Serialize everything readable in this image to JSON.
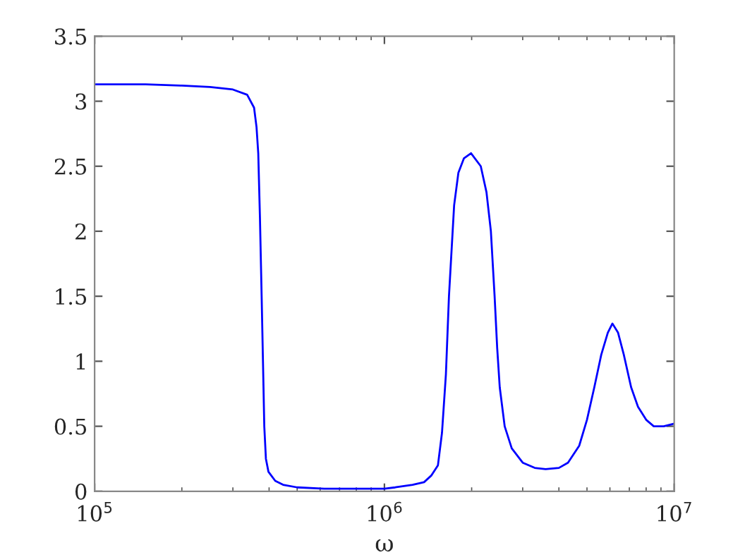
{
  "chart_data": {
    "type": "line",
    "xlabel": "ω",
    "log": "x",
    "xlim": [
      100000,
      10000000
    ],
    "ylim": [
      0,
      3.5
    ],
    "xticks": [
      {
        "value": 100000,
        "label": "10$^{5}$"
      },
      {
        "value": 1000000,
        "label": "10$^{6}$"
      },
      {
        "value": 10000000,
        "label": "10$^{7}$"
      }
    ],
    "yticks": [
      0,
      0.5,
      1,
      1.5,
      2,
      2.5,
      3,
      3.5
    ],
    "grid": false,
    "legend": false,
    "marker": "none",
    "line_style": "solid",
    "series": [
      {
        "color": "#0000ff",
        "x": [
          100000,
          150000,
          200000,
          250000,
          300000,
          336000,
          355000,
          362000,
          367000,
          372000,
          377000,
          381000,
          385000,
          390000,
          398000,
          420000,
          447000,
          500000,
          620000,
          750000,
          870000,
          1000000,
          1090000,
          1250000,
          1370000,
          1450000,
          1530000,
          1580000,
          1630000,
          1670000,
          1740000,
          1800000,
          1880000,
          1990000,
          2150000,
          2250000,
          2330000,
          2400000,
          2450000,
          2500000,
          2600000,
          2750000,
          3000000,
          3300000,
          3600000,
          4000000,
          4300000,
          4700000,
          5000000,
          5300000,
          5600000,
          5900000,
          6120000,
          6400000,
          6700000,
          7100000,
          7500000,
          8000000,
          8500000,
          9200000,
          10000000
        ],
        "values": [
          3.13,
          3.13,
          3.12,
          3.11,
          3.09,
          3.05,
          2.95,
          2.8,
          2.6,
          2.1,
          1.5,
          1.0,
          0.5,
          0.25,
          0.15,
          0.08,
          0.05,
          0.03,
          0.02,
          0.02,
          0.02,
          0.02,
          0.03,
          0.05,
          0.07,
          0.12,
          0.2,
          0.45,
          0.9,
          1.5,
          2.2,
          2.45,
          2.56,
          2.6,
          2.5,
          2.3,
          2.0,
          1.5,
          1.1,
          0.8,
          0.5,
          0.33,
          0.22,
          0.18,
          0.17,
          0.18,
          0.22,
          0.35,
          0.55,
          0.8,
          1.05,
          1.22,
          1.29,
          1.22,
          1.05,
          0.8,
          0.65,
          0.55,
          0.5,
          0.5,
          0.52
        ]
      }
    ]
  }
}
